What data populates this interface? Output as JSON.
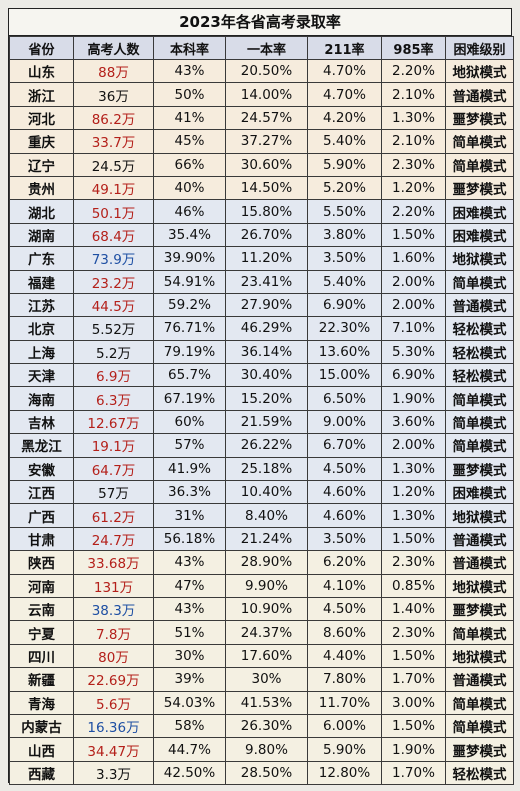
{
  "title": "2023年各省高考录取率",
  "columns": [
    "省份",
    "高考人数",
    "本科率",
    "一本率",
    "211率",
    "985率",
    "困难级别"
  ],
  "rows": [
    {
      "province": "山东",
      "examinees": "88万",
      "color": "red",
      "undergrad": "43%",
      "tier1": "20.50%",
      "r211": "4.70%",
      "r985": "2.20%",
      "level": "地狱模式",
      "band": "a"
    },
    {
      "province": "浙江",
      "examinees": "36万",
      "color": "dark",
      "undergrad": "50%",
      "tier1": "14.00%",
      "r211": "4.70%",
      "r985": "2.10%",
      "level": "普通模式",
      "band": "a"
    },
    {
      "province": "河北",
      "examinees": "86.2万",
      "color": "red",
      "undergrad": "41%",
      "tier1": "24.57%",
      "r211": "4.20%",
      "r985": "1.30%",
      "level": "噩梦模式",
      "band": "a"
    },
    {
      "province": "重庆",
      "examinees": "33.7万",
      "color": "red",
      "undergrad": "45%",
      "tier1": "37.27%",
      "r211": "5.40%",
      "r985": "2.10%",
      "level": "简单模式",
      "band": "a"
    },
    {
      "province": "辽宁",
      "examinees": "24.5万",
      "color": "dark",
      "undergrad": "66%",
      "tier1": "30.60%",
      "r211": "5.90%",
      "r985": "2.30%",
      "level": "简单模式",
      "band": "a"
    },
    {
      "province": "贵州",
      "examinees": "49.1万",
      "color": "red",
      "undergrad": "40%",
      "tier1": "14.50%",
      "r211": "5.20%",
      "r985": "1.20%",
      "level": "噩梦模式",
      "band": "a"
    },
    {
      "province": "湖北",
      "examinees": "50.1万",
      "color": "red",
      "undergrad": "46%",
      "tier1": "15.80%",
      "r211": "5.50%",
      "r985": "2.20%",
      "level": "困难模式",
      "band": "b"
    },
    {
      "province": "湖南",
      "examinees": "68.4万",
      "color": "red",
      "undergrad": "35.4%",
      "tier1": "26.70%",
      "r211": "3.80%",
      "r985": "1.50%",
      "level": "困难模式",
      "band": "b"
    },
    {
      "province": "广东",
      "examinees": "73.9万",
      "color": "blue",
      "undergrad": "39.90%",
      "tier1": "11.20%",
      "r211": "3.50%",
      "r985": "1.60%",
      "level": "地狱模式",
      "band": "b"
    },
    {
      "province": "福建",
      "examinees": "23.2万",
      "color": "red",
      "undergrad": "54.91%",
      "tier1": "23.41%",
      "r211": "5.40%",
      "r985": "2.00%",
      "level": "简单模式",
      "band": "b"
    },
    {
      "province": "江苏",
      "examinees": "44.5万",
      "color": "red",
      "undergrad": "59.2%",
      "tier1": "27.90%",
      "r211": "6.90%",
      "r985": "2.00%",
      "level": "普通模式",
      "band": "b"
    },
    {
      "province": "北京",
      "examinees": "5.52万",
      "color": "dark",
      "undergrad": "76.71%",
      "tier1": "46.29%",
      "r211": "22.30%",
      "r985": "7.10%",
      "level": "轻松模式",
      "band": "b"
    },
    {
      "province": "上海",
      "examinees": "5.2万",
      "color": "dark",
      "undergrad": "79.19%",
      "tier1": "36.14%",
      "r211": "13.60%",
      "r985": "5.30%",
      "level": "轻松模式",
      "band": "b"
    },
    {
      "province": "天津",
      "examinees": "6.9万",
      "color": "red",
      "undergrad": "65.7%",
      "tier1": "30.40%",
      "r211": "15.00%",
      "r985": "6.90%",
      "level": "轻松模式",
      "band": "b"
    },
    {
      "province": "海南",
      "examinees": "6.3万",
      "color": "red",
      "undergrad": "67.19%",
      "tier1": "15.20%",
      "r211": "6.50%",
      "r985": "1.90%",
      "level": "简单模式",
      "band": "b"
    },
    {
      "province": "吉林",
      "examinees": "12.67万",
      "color": "red",
      "undergrad": "60%",
      "tier1": "21.59%",
      "r211": "9.00%",
      "r985": "3.60%",
      "level": "简单模式",
      "band": "b"
    },
    {
      "province": "黑龙江",
      "examinees": "19.1万",
      "color": "red",
      "undergrad": "57%",
      "tier1": "26.22%",
      "r211": "6.70%",
      "r985": "2.00%",
      "level": "简单模式",
      "band": "b"
    },
    {
      "province": "安徽",
      "examinees": "64.7万",
      "color": "red",
      "undergrad": "41.9%",
      "tier1": "25.18%",
      "r211": "4.50%",
      "r985": "1.30%",
      "level": "噩梦模式",
      "band": "b"
    },
    {
      "province": "江西",
      "examinees": "57万",
      "color": "dark",
      "undergrad": "36.3%",
      "tier1": "10.40%",
      "r211": "4.60%",
      "r985": "1.20%",
      "level": "困难模式",
      "band": "b"
    },
    {
      "province": "广西",
      "examinees": "61.2万",
      "color": "red",
      "undergrad": "31%",
      "tier1": "8.40%",
      "r211": "4.60%",
      "r985": "1.30%",
      "level": "地狱模式",
      "band": "b"
    },
    {
      "province": "甘肃",
      "examinees": "24.7万",
      "color": "red",
      "undergrad": "56.18%",
      "tier1": "21.24%",
      "r211": "3.50%",
      "r985": "1.50%",
      "level": "普通模式",
      "band": "b"
    },
    {
      "province": "陕西",
      "examinees": "33.68万",
      "color": "red",
      "undergrad": "43%",
      "tier1": "28.90%",
      "r211": "6.20%",
      "r985": "2.30%",
      "level": "普通模式",
      "band": "c"
    },
    {
      "province": "河南",
      "examinees": "131万",
      "color": "red",
      "undergrad": "47%",
      "tier1": "9.90%",
      "r211": "4.10%",
      "r985": "0.85%",
      "level": "地狱模式",
      "band": "c"
    },
    {
      "province": "云南",
      "examinees": "38.3万",
      "color": "blue",
      "undergrad": "43%",
      "tier1": "10.90%",
      "r211": "4.50%",
      "r985": "1.40%",
      "level": "噩梦模式",
      "band": "c"
    },
    {
      "province": "宁夏",
      "examinees": "7.8万",
      "color": "red",
      "undergrad": "51%",
      "tier1": "24.37%",
      "r211": "8.60%",
      "r985": "2.30%",
      "level": "简单模式",
      "band": "c"
    },
    {
      "province": "四川",
      "examinees": "80万",
      "color": "red",
      "undergrad": "30%",
      "tier1": "17.60%",
      "r211": "4.40%",
      "r985": "1.50%",
      "level": "地狱模式",
      "band": "c"
    },
    {
      "province": "新疆",
      "examinees": "22.69万",
      "color": "red",
      "undergrad": "39%",
      "tier1": "30%",
      "r211": "7.80%",
      "r985": "1.70%",
      "level": "普通模式",
      "band": "c"
    },
    {
      "province": "青海",
      "examinees": "5.6万",
      "color": "red",
      "undergrad": "54.03%",
      "tier1": "41.53%",
      "r211": "11.70%",
      "r985": "3.00%",
      "level": "简单模式",
      "band": "c"
    },
    {
      "province": "内蒙古",
      "examinees": "16.36万",
      "color": "blue",
      "undergrad": "58%",
      "tier1": "26.30%",
      "r211": "6.00%",
      "r985": "1.50%",
      "level": "简单模式",
      "band": "c"
    },
    {
      "province": "山西",
      "examinees": "34.47万",
      "color": "red",
      "undergrad": "44.7%",
      "tier1": "9.80%",
      "r211": "5.90%",
      "r985": "1.90%",
      "level": "噩梦模式",
      "band": "c"
    },
    {
      "province": "西藏",
      "examinees": "3.3万",
      "color": "dark",
      "undergrad": "42.50%",
      "tier1": "28.50%",
      "r211": "12.80%",
      "r985": "1.70%",
      "level": "轻松模式",
      "band": "c"
    }
  ]
}
